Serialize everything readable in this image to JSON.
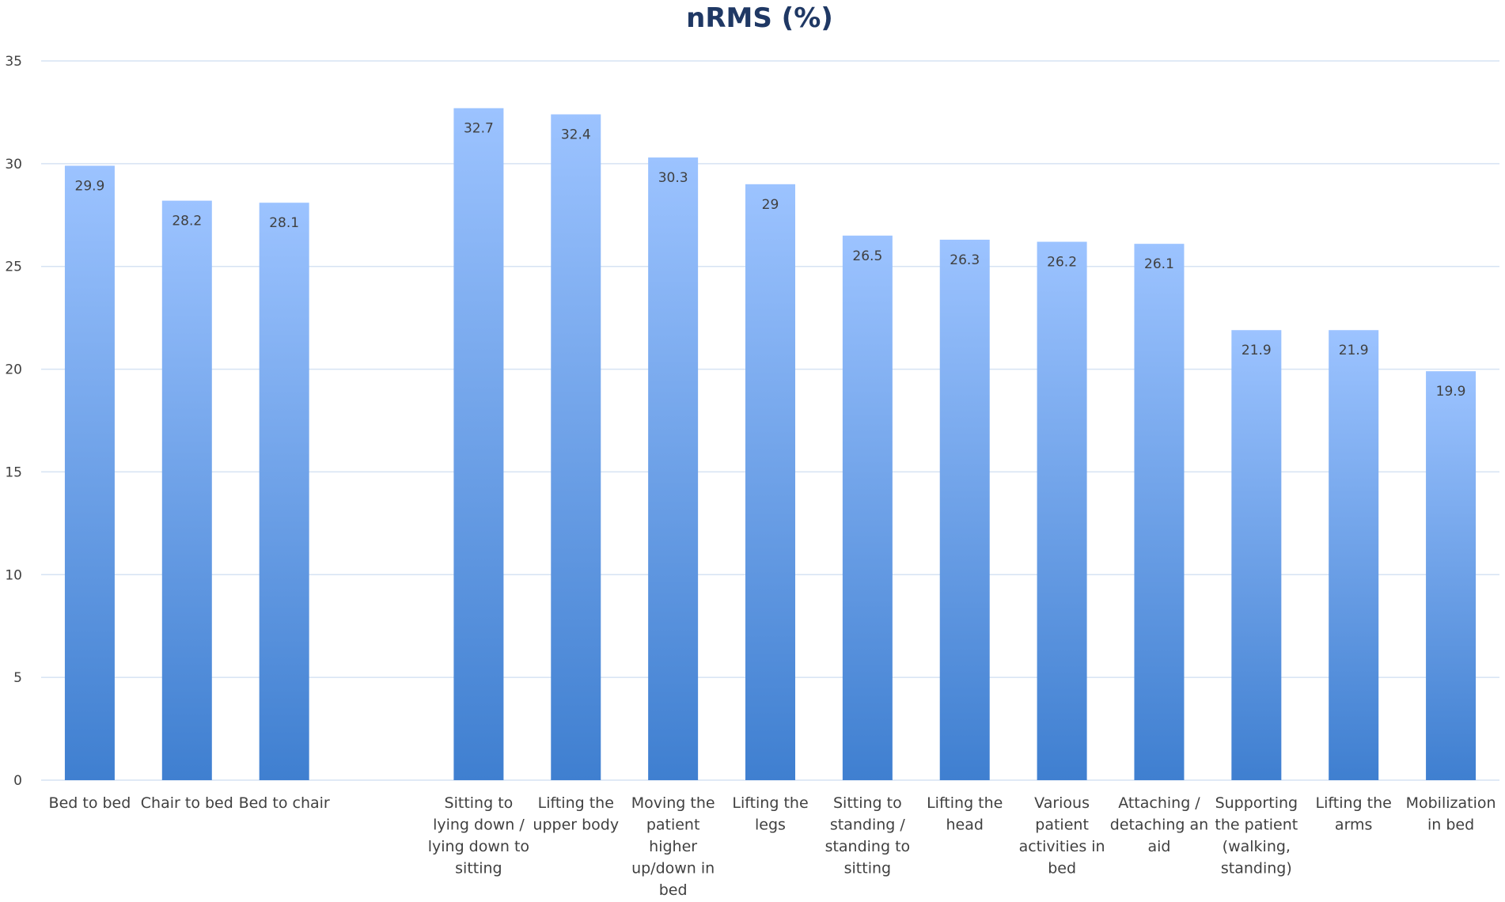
{
  "chart_data": {
    "type": "bar",
    "title": "nRMS (%)",
    "xlabel": "",
    "ylabel": "",
    "ylim": [
      0,
      35
    ],
    "yticks": [
      0,
      5,
      10,
      15,
      20,
      25,
      30,
      35
    ],
    "grid": true,
    "legend": "none",
    "bar_color_top": "#9cc3ff",
    "bar_color_bottom": "#3f7fd0",
    "title_color": "#1f3864",
    "categories": [
      [
        "Bed to bed"
      ],
      [
        "Chair to bed"
      ],
      [
        "Bed to chair"
      ],
      [
        ""
      ],
      [
        "Sitting to",
        "lying down /",
        "lying down to",
        "sitting"
      ],
      [
        "Lifting the",
        "upper body"
      ],
      [
        "Moving the",
        "patient",
        "higher",
        "up/down in",
        "bed"
      ],
      [
        "Lifting the",
        "legs"
      ],
      [
        "Sitting to",
        "standing /",
        "standing to",
        "sitting"
      ],
      [
        "Lifting the",
        "head"
      ],
      [
        "Various",
        "patient",
        "activities in",
        "bed"
      ],
      [
        "Attaching /",
        "detaching an",
        "aid"
      ],
      [
        "Supporting",
        "the patient",
        "(walking,",
        "standing)"
      ],
      [
        "Lifting the",
        "arms"
      ],
      [
        "Mobilization",
        "in bed"
      ]
    ],
    "values": [
      29.9,
      28.2,
      28.1,
      null,
      32.7,
      32.4,
      30.3,
      29,
      26.5,
      26.3,
      26.2,
      26.1,
      21.9,
      21.9,
      19.9
    ],
    "data_labels": [
      "29.9",
      "28.2",
      "28.1",
      "",
      "32.7",
      "32.4",
      "30.3",
      "29",
      "26.5",
      "26.3",
      "26.2",
      "26.1",
      "21.9",
      "21.9",
      "19.9"
    ]
  }
}
